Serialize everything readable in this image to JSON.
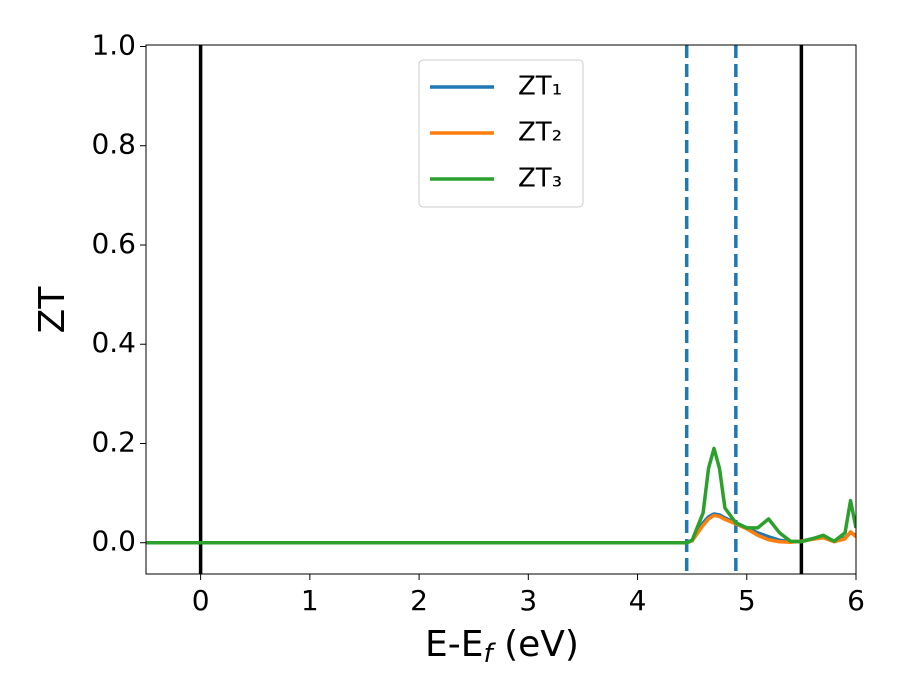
{
  "chart_data": {
    "type": "line",
    "x_label": "E-E",
    "x_label_sub": "f",
    "x_label_tail": " (eV)",
    "y_label": "ZT",
    "x": [
      -0.5,
      0,
      1,
      2,
      3,
      4,
      4.45,
      4.5,
      4.6,
      4.65,
      4.7,
      4.75,
      4.8,
      4.9,
      5.0,
      5.1,
      5.2,
      5.3,
      5.4,
      5.5,
      5.6,
      5.7,
      5.8,
      5.9,
      5.95,
      6.0
    ],
    "series": [
      {
        "name": "ZT₁",
        "color": "#1f77b4",
        "values": [
          0,
          0,
          0,
          0,
          0,
          0,
          0,
          0.005,
          0.04,
          0.052,
          0.058,
          0.056,
          0.05,
          0.04,
          0.03,
          0.02,
          0.012,
          0.005,
          0.002,
          0.003,
          0.008,
          0.012,
          0.003,
          0.01,
          0.02,
          0.015
        ]
      },
      {
        "name": "ZT₂",
        "color": "#ff7f0e",
        "values": [
          0,
          0,
          0,
          0,
          0,
          0,
          0,
          0.004,
          0.035,
          0.048,
          0.055,
          0.053,
          0.047,
          0.038,
          0.028,
          0.015,
          0.006,
          0.002,
          0.001,
          0.003,
          0.007,
          0.01,
          0.002,
          0.008,
          0.022,
          0.012
        ]
      },
      {
        "name": "ZT₃",
        "color": "#2ca02c",
        "values": [
          0,
          0,
          0,
          0,
          0,
          0,
          0,
          0.005,
          0.06,
          0.15,
          0.19,
          0.15,
          0.07,
          0.04,
          0.03,
          0.03,
          0.048,
          0.02,
          0.003,
          0.002,
          0.008,
          0.015,
          0.003,
          0.02,
          0.085,
          0.03
        ]
      }
    ],
    "vlines": [
      {
        "x": 0,
        "color": "#000000",
        "style": "solid"
      },
      {
        "x": 5.5,
        "color": "#000000",
        "style": "solid"
      },
      {
        "x": 4.45,
        "color": "#1f77b4",
        "style": "dashed"
      },
      {
        "x": 4.9,
        "color": "#1f77b4",
        "style": "dashed"
      }
    ],
    "xlim": [
      -0.5,
      6
    ],
    "xticks": [
      0,
      1,
      2,
      3,
      4,
      5,
      6
    ],
    "ylim": [
      -0.063,
      1.003
    ],
    "yticks": [
      {
        "value": 0,
        "label": "0.0"
      },
      {
        "value": 0.2,
        "label": "0.2"
      },
      {
        "value": 0.4,
        "label": "0.4"
      },
      {
        "value": 0.6,
        "label": "0.6"
      },
      {
        "value": 0.8,
        "label": "0.8"
      },
      {
        "value": 1,
        "label": "1.0"
      }
    ],
    "grid": false,
    "legend": "upper center"
  }
}
